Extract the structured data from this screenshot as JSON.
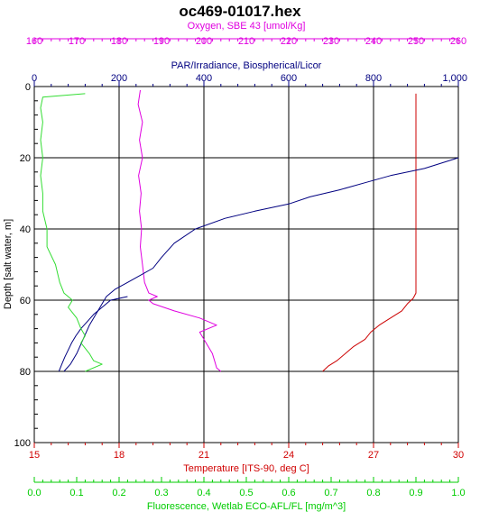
{
  "chart_data": {
    "type": "line",
    "title": "oc469-01017.hex",
    "grid": "on",
    "y_axis": {
      "label": "Depth [salt water, m]",
      "range": [
        0,
        100
      ],
      "inverted": true,
      "ticks": [
        "0",
        "20",
        "40",
        "60",
        "80",
        "100"
      ]
    },
    "x_axes": [
      {
        "key": "oxygen",
        "position": "top-outer",
        "label": "Oxygen, SBE 43 [umol/Kg]",
        "color": "#e000e0",
        "range": [
          160,
          260
        ],
        "ticks": [
          "160",
          "170",
          "180",
          "190",
          "200",
          "210",
          "220",
          "230",
          "240",
          "250",
          "260"
        ]
      },
      {
        "key": "par",
        "position": "top-inner",
        "label": "PAR/Irradiance, Biospherical/Licor",
        "color": "#000080",
        "range": [
          0,
          1000
        ],
        "ticks": [
          "0",
          "200",
          "400",
          "600",
          "800",
          "1,000"
        ]
      },
      {
        "key": "temperature",
        "position": "bottom-inner",
        "label": "Temperature [ITS-90, deg C]",
        "color": "#d00000",
        "range": [
          15,
          30
        ],
        "ticks": [
          "15",
          "18",
          "21",
          "24",
          "27",
          "30"
        ]
      },
      {
        "key": "fluorescence",
        "position": "bottom-outer",
        "label": "Fluorescence, Wetlab ECO-AFL/FL [mg/m^3]",
        "color": "#00cc00",
        "range": [
          0,
          1.0
        ],
        "ticks": [
          "0.0",
          "0.1",
          "0.2",
          "0.3",
          "0.4",
          "0.5",
          "0.6",
          "0.7",
          "0.8",
          "0.9",
          "1.0"
        ]
      }
    ],
    "series": [
      {
        "axis": "temperature",
        "color": "#cc0000",
        "points": [
          [
            28.5,
            2
          ],
          [
            28.5,
            10
          ],
          [
            28.5,
            20
          ],
          [
            28.5,
            30
          ],
          [
            28.5,
            40
          ],
          [
            28.5,
            50
          ],
          [
            28.5,
            58
          ],
          [
            28.4,
            59.5
          ],
          [
            28.2,
            61
          ],
          [
            28.0,
            63
          ],
          [
            27.6,
            65
          ],
          [
            27.2,
            67
          ],
          [
            26.9,
            69
          ],
          [
            26.7,
            71
          ],
          [
            26.3,
            73
          ],
          [
            26.0,
            75
          ],
          [
            25.7,
            77
          ],
          [
            25.4,
            78.5
          ],
          [
            25.2,
            80
          ]
        ]
      },
      {
        "axis": "oxygen",
        "color": "#e000e0",
        "points": [
          [
            185,
            1
          ],
          [
            184.5,
            5
          ],
          [
            185.5,
            10
          ],
          [
            184.8,
            15
          ],
          [
            185.5,
            20
          ],
          [
            184.6,
            25
          ],
          [
            185.2,
            30
          ],
          [
            184.8,
            35
          ],
          [
            185.3,
            40
          ],
          [
            185,
            45
          ],
          [
            185.5,
            50
          ],
          [
            186,
            55
          ],
          [
            187,
            58
          ],
          [
            189,
            59
          ],
          [
            187,
            60
          ],
          [
            188,
            61
          ],
          [
            193,
            63
          ],
          [
            199,
            65
          ],
          [
            203,
            67
          ],
          [
            199,
            69
          ],
          [
            200,
            71
          ],
          [
            201,
            73
          ],
          [
            202,
            75
          ],
          [
            202.5,
            77
          ],
          [
            203,
            79
          ],
          [
            204,
            80
          ]
        ]
      },
      {
        "axis": "par",
        "color": "#000080",
        "points": [
          [
            1000,
            20
          ],
          [
            920,
            23
          ],
          [
            840,
            25
          ],
          [
            780,
            27
          ],
          [
            720,
            29
          ],
          [
            650,
            31
          ],
          [
            600,
            33
          ],
          [
            520,
            35
          ],
          [
            450,
            37
          ],
          [
            380,
            40
          ],
          [
            330,
            44
          ],
          [
            300,
            48
          ],
          [
            280,
            51
          ],
          [
            250,
            53
          ],
          [
            220,
            55
          ],
          [
            190,
            57
          ],
          [
            170,
            59
          ],
          [
            150,
            63
          ],
          [
            130,
            67
          ],
          [
            115,
            71
          ],
          [
            100,
            75
          ],
          [
            85,
            78
          ],
          [
            70,
            80
          ]
        ]
      },
      {
        "axis": "par",
        "color": "#000080",
        "points": [
          [
            220,
            59
          ],
          [
            180,
            60
          ],
          [
            160,
            62
          ],
          [
            140,
            64
          ],
          [
            125,
            66
          ],
          [
            110,
            68
          ],
          [
            98,
            70
          ],
          [
            88,
            72
          ],
          [
            80,
            74
          ],
          [
            72,
            76
          ],
          [
            65,
            78
          ],
          [
            58,
            80
          ]
        ]
      },
      {
        "axis": "fluorescence",
        "color": "#33dd33",
        "points": [
          [
            0.12,
            2
          ],
          [
            0.02,
            3
          ],
          [
            0.015,
            6
          ],
          [
            0.02,
            10
          ],
          [
            0.015,
            15
          ],
          [
            0.02,
            20
          ],
          [
            0.015,
            25
          ],
          [
            0.02,
            30
          ],
          [
            0.02,
            35
          ],
          [
            0.03,
            40
          ],
          [
            0.03,
            45
          ],
          [
            0.05,
            50
          ],
          [
            0.06,
            55
          ],
          [
            0.07,
            58
          ],
          [
            0.09,
            60
          ],
          [
            0.08,
            62
          ],
          [
            0.1,
            65
          ],
          [
            0.11,
            68
          ],
          [
            0.12,
            70
          ],
          [
            0.11,
            72
          ],
          [
            0.13,
            75
          ],
          [
            0.14,
            77
          ],
          [
            0.16,
            78
          ],
          [
            0.12,
            80
          ]
        ]
      }
    ]
  }
}
